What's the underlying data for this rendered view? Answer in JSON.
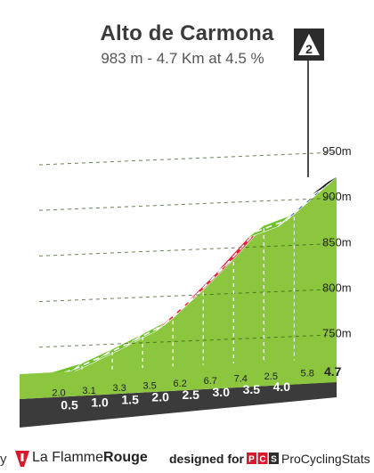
{
  "header": {
    "title": "Alto de Carmona",
    "subtitle": "983 m - 4.7 Km at 4.5 %",
    "category_badge": "2"
  },
  "chart_data": {
    "type": "area",
    "title": "Alto de Carmona",
    "subtitle": "983 m - 4.7 Km at 4.5 %",
    "xlabel": "",
    "ylabel": "",
    "xlim": [
      0,
      4.7
    ],
    "ylim": [
      697,
      1000
    ],
    "y_ticks": [
      {
        "value": 750,
        "label": "750m"
      },
      {
        "value": 800,
        "label": "800m"
      },
      {
        "value": 850,
        "label": "850m"
      },
      {
        "value": 900,
        "label": "900m"
      },
      {
        "value": 950,
        "label": "950m"
      }
    ],
    "x_ticks": [
      {
        "value": 0.5,
        "label": "0.5"
      },
      {
        "value": 1.0,
        "label": "1.0"
      },
      {
        "value": 1.5,
        "label": "1.5"
      },
      {
        "value": 2.0,
        "label": "2.0"
      },
      {
        "value": 2.5,
        "label": "2.5"
      },
      {
        "value": 3.0,
        "label": "3.0"
      },
      {
        "value": 3.5,
        "label": "3.5"
      },
      {
        "value": 4.0,
        "label": "4.0"
      }
    ],
    "finish_label": "4.7",
    "segments": [
      {
        "from": 0.0,
        "to": 0.5,
        "gradient": 2.0,
        "gradient_label": "2.0",
        "color": "#6fc12a"
      },
      {
        "from": 0.5,
        "to": 1.0,
        "gradient": 3.1,
        "gradient_label": "3.1",
        "color": "#6fc12a"
      },
      {
        "from": 1.0,
        "to": 1.5,
        "gradient": 3.3,
        "gradient_label": "3.3",
        "color": "#6fc12a"
      },
      {
        "from": 1.5,
        "to": 2.0,
        "gradient": 3.5,
        "gradient_label": "3.5",
        "color": "#6fc12a"
      },
      {
        "from": 2.0,
        "to": 2.5,
        "gradient": 6.2,
        "gradient_label": "6.2",
        "color": "#e0243a"
      },
      {
        "from": 2.5,
        "to": 3.0,
        "gradient": 6.7,
        "gradient_label": "6.7",
        "color": "#e0243a"
      },
      {
        "from": 3.0,
        "to": 3.5,
        "gradient": 7.4,
        "gradient_label": "7.4",
        "color": "#e0243a"
      },
      {
        "from": 3.5,
        "to": 4.0,
        "gradient": 2.5,
        "gradient_label": "2.5",
        "color": "#6fc12a"
      },
      {
        "from": 4.0,
        "to": 4.7,
        "gradient": 5.8,
        "gradient_label": "5.8",
        "color": "#2060a8"
      }
    ]
  },
  "colors": {
    "fill": "#8cc63f",
    "fill_dark": "#76b030",
    "side": "#a89e92",
    "base": "#3b3b3b",
    "label_text": "#222222",
    "axis_text": "#222222"
  },
  "footer": {
    "by_text": "y",
    "brand_name_light": "La Flamme",
    "brand_name_bold": "Rouge",
    "designed_for": "designed for",
    "pcs_letters": [
      "P",
      "C",
      "S"
    ],
    "pcs_name": "ProCyclingStats"
  }
}
